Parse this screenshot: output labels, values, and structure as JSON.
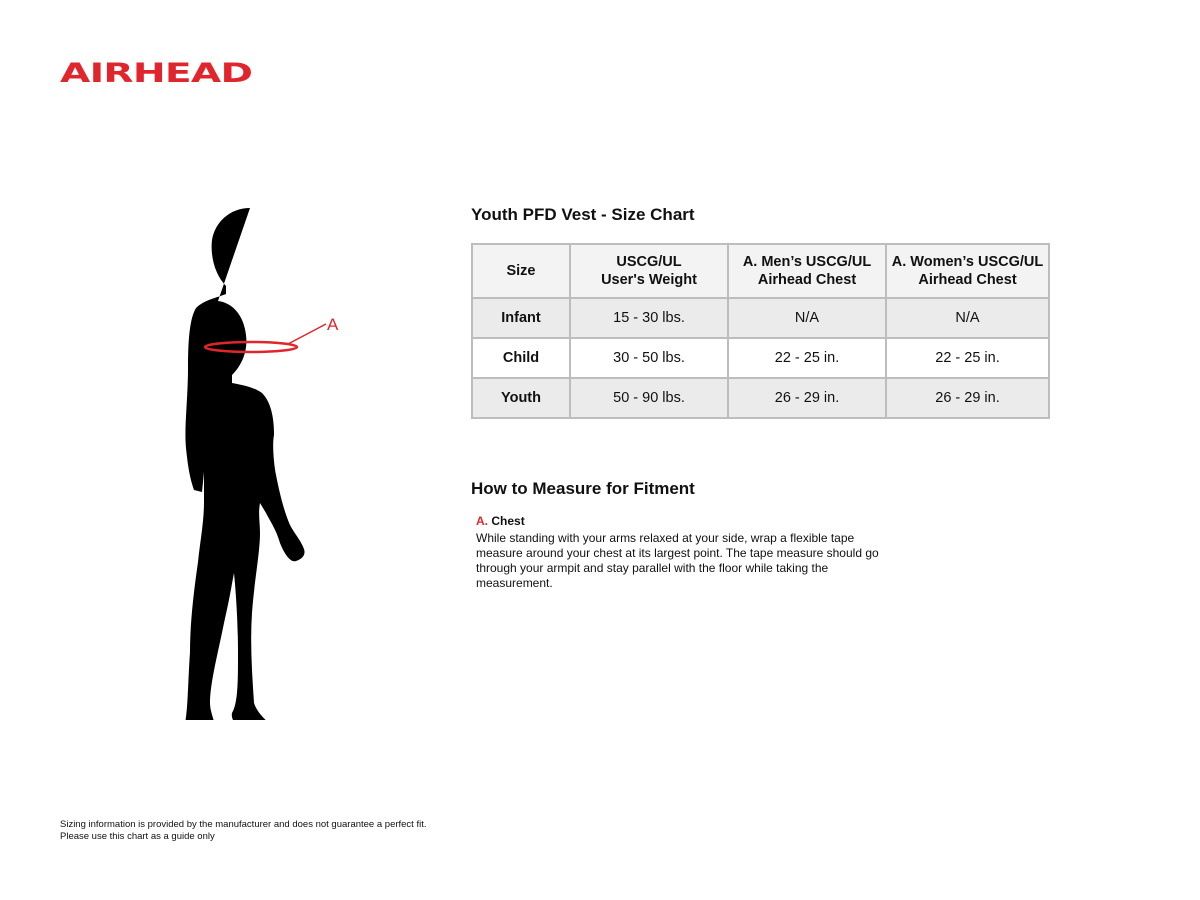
{
  "logo": {
    "text": "AIRHEAD",
    "color": "#e1252d"
  },
  "figure": {
    "marker_label": "A"
  },
  "chart": {
    "title": "Youth PFD Vest - Size Chart",
    "headers": [
      [
        "Size"
      ],
      [
        "USCG/UL",
        "User's Weight"
      ],
      [
        "A. Men’s USCG/UL",
        "Airhead Chest"
      ],
      [
        "A. Women’s USCG/UL",
        "Airhead Chest"
      ]
    ],
    "rows": [
      [
        "Infant",
        "15 - 30 lbs.",
        "N/A",
        "N/A"
      ],
      [
        "Child",
        "30 - 50 lbs.",
        "22 - 25 in.",
        "22 - 25 in."
      ],
      [
        "Youth",
        "50 - 90 lbs.",
        "26 - 29 in.",
        "26 - 29 in."
      ]
    ]
  },
  "measure": {
    "title": "How to Measure for Fitment",
    "label_letter": "A.",
    "label": "Chest",
    "description": "While standing with your arms relaxed at your side, wrap a flexible tape measure around your chest at its largest point. The tape measure should go through your armpit and stay parallel with the floor while taking the measurement."
  },
  "footer": {
    "line1": "Sizing information is provided by the manufacturer and does not guarantee a perfect fit.",
    "line2": "Please use this chart as a guide only"
  }
}
